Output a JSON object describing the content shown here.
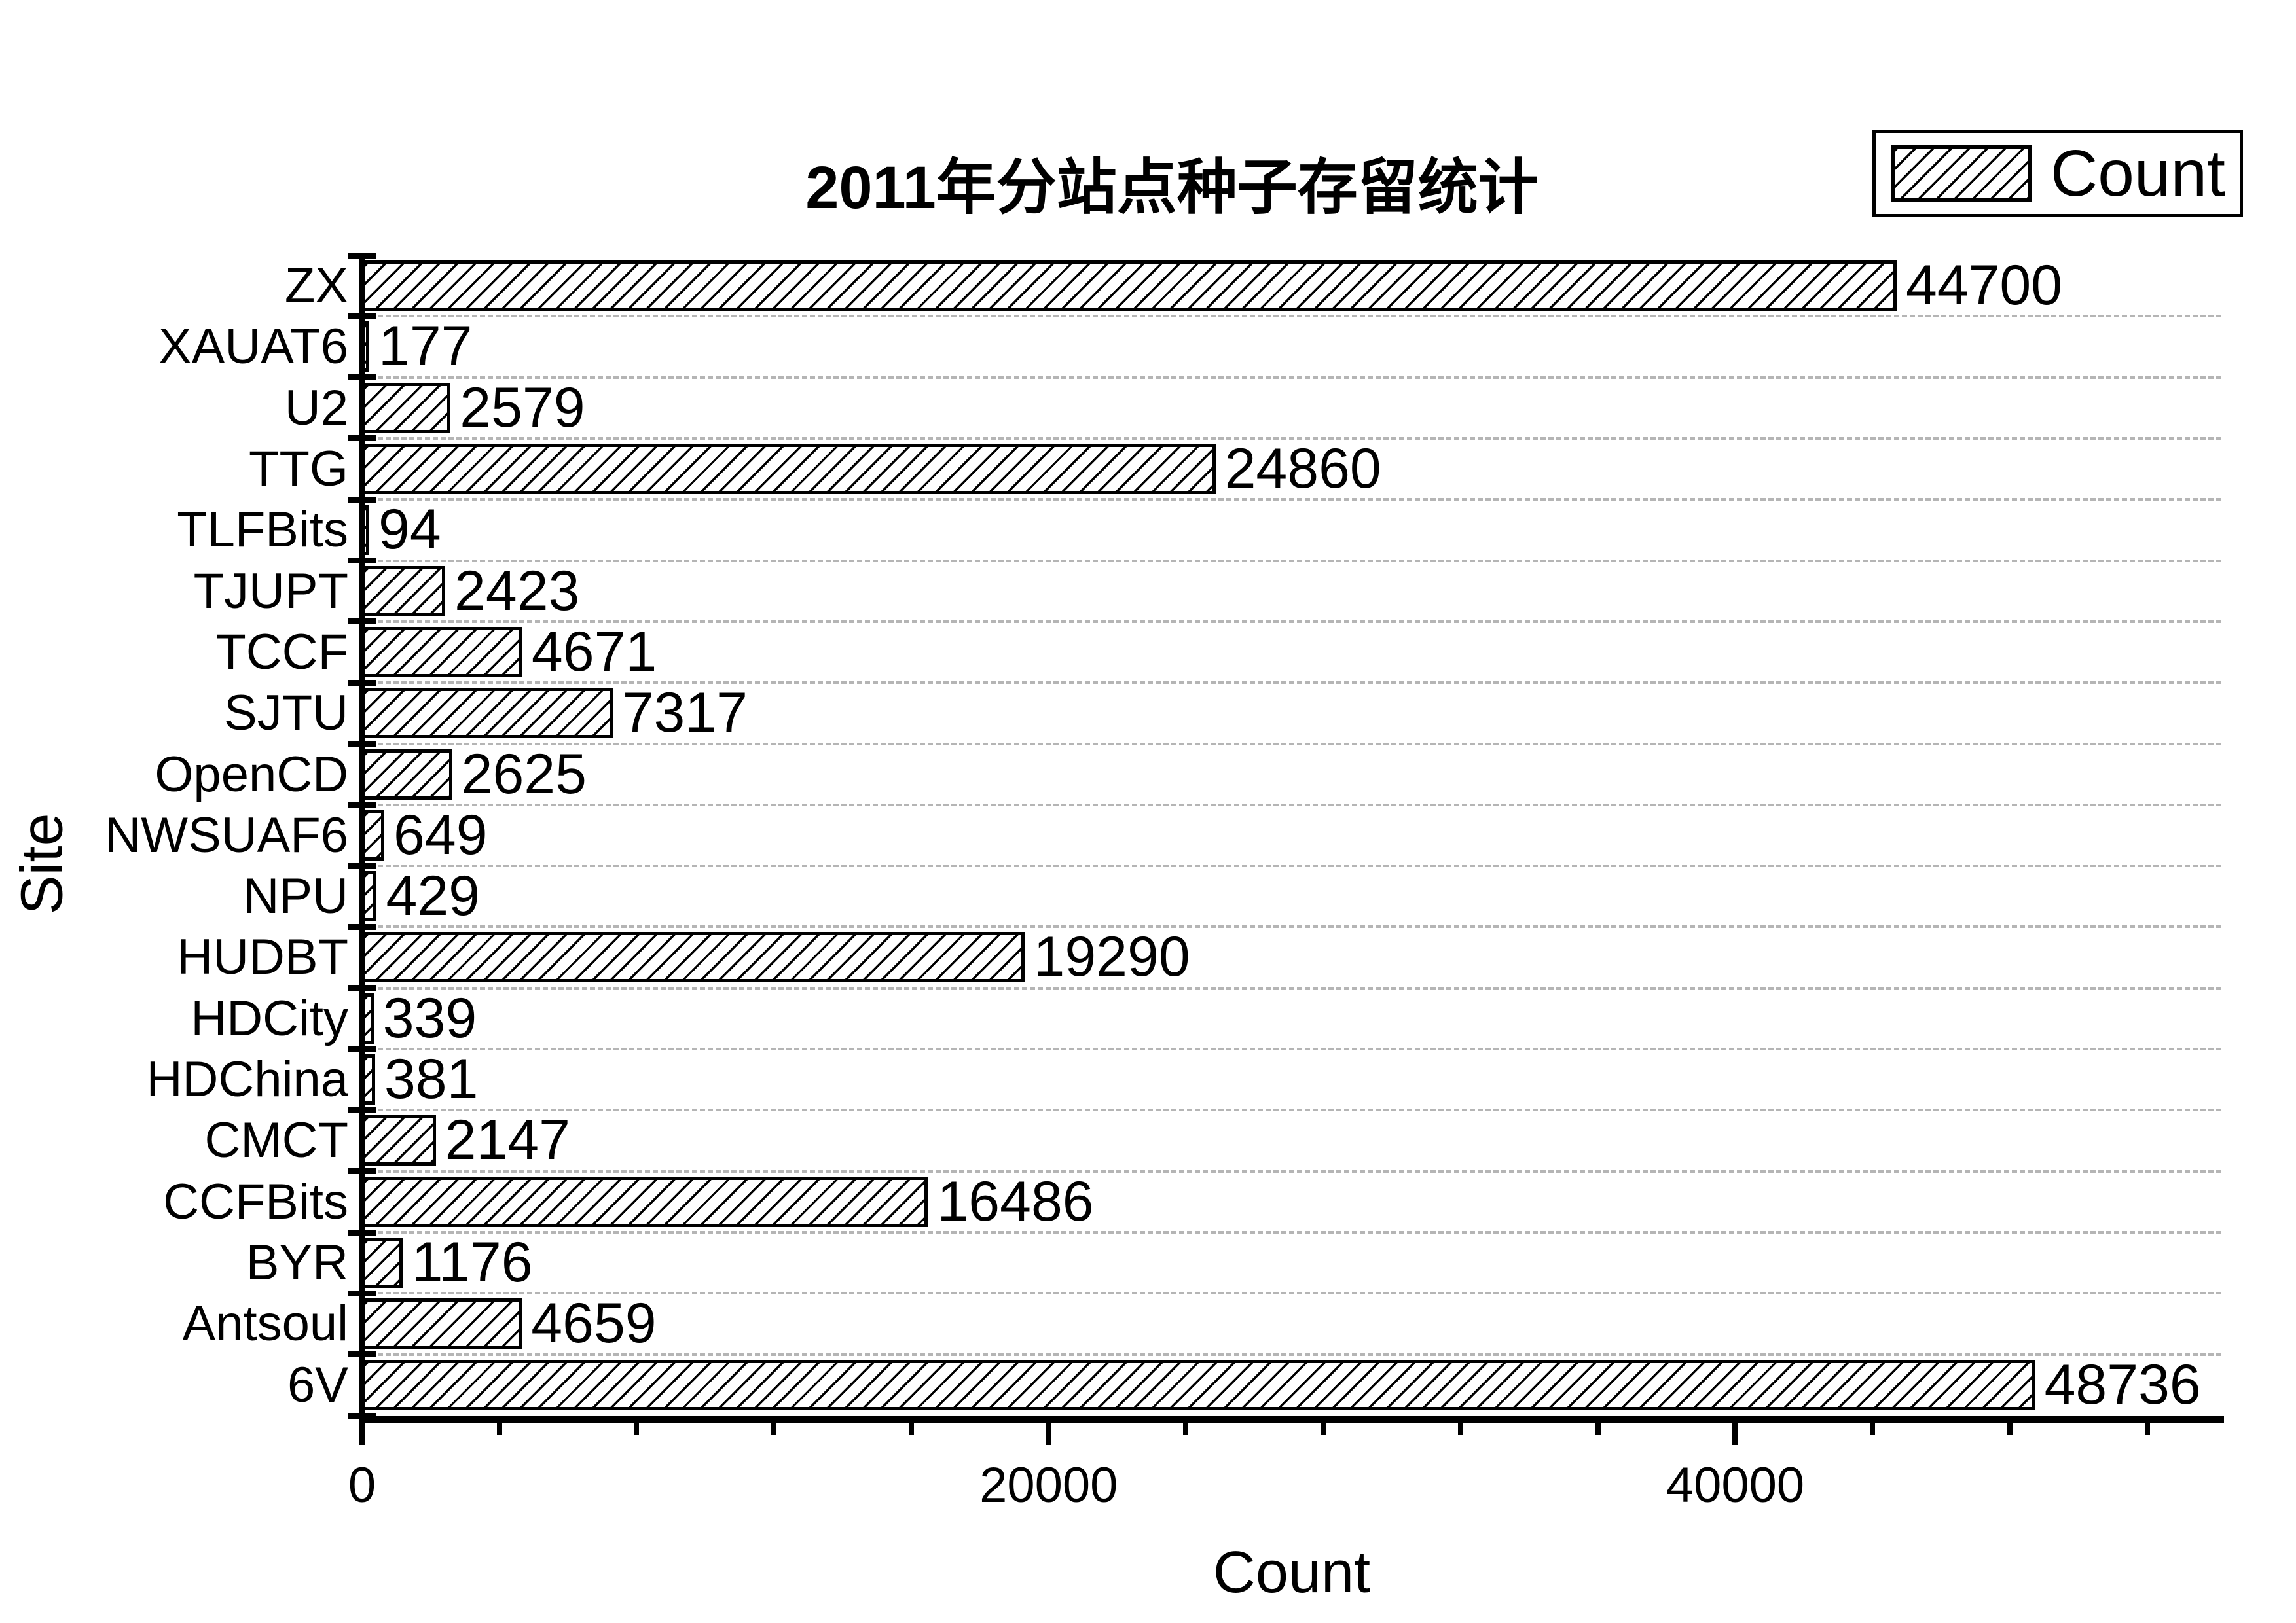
{
  "title": "2011年分站点种子存留统计",
  "legend": {
    "label": "Count"
  },
  "xlabel": "Count",
  "ylabel": "Site",
  "chart_data": {
    "type": "bar",
    "orientation": "horizontal",
    "title": "2011年分站点种子存留统计",
    "xlabel": "Count",
    "ylabel": "Site",
    "legend": [
      "Count"
    ],
    "legend_position": "top-right",
    "categories": [
      "ZX",
      "XAUAT6",
      "U2",
      "TTG",
      "TLFBits",
      "TJUPT",
      "TCCF",
      "SJTU",
      "OpenCD",
      "NWSUAF6",
      "NPU",
      "HUDBT",
      "HDCity",
      "HDChina",
      "CMCT",
      "CCFBits",
      "BYR",
      "Antsoul",
      "6V"
    ],
    "values": [
      44700,
      177,
      2579,
      24860,
      94,
      2423,
      4671,
      7317,
      2625,
      649,
      429,
      19290,
      339,
      381,
      2147,
      16486,
      1176,
      4659,
      48736
    ],
    "xlim": [
      0,
      54160
    ],
    "x_major_ticks": [
      0,
      20000,
      40000
    ],
    "x_minor_ticks": [
      4000,
      8000,
      12000,
      16000,
      24000,
      28000,
      32000,
      36000,
      44000,
      48000,
      52000
    ],
    "grid": "horizontal dashed lines at category boundaries",
    "bar_style": "white fill with black diagonal hatch (/) and black outline",
    "colors": {
      "background": "#ffffff",
      "bar_fill": "#ffffff",
      "bar_edge": "#000000",
      "text": "#000000",
      "grid": "#b5b5b5"
    }
  }
}
